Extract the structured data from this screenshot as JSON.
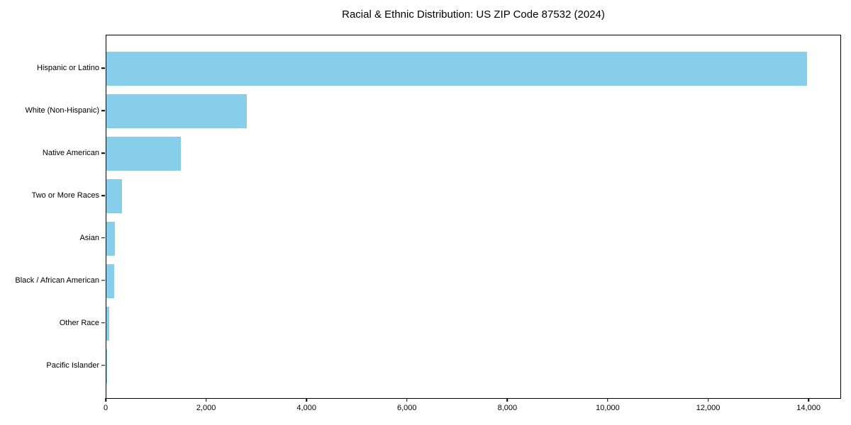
{
  "title": "Racial & Ethnic Distribution: US ZIP Code 87532 (2024)",
  "colors": {
    "bar": "#87CEEB",
    "axis": "#000000",
    "text": "#000000",
    "background": "#ffffff"
  },
  "chart_data": {
    "type": "bar",
    "orientation": "horizontal",
    "title": "Racial & Ethnic Distribution: US ZIP Code 87532 (2024)",
    "categories": [
      "Hispanic or Latino",
      "White (Non-Hispanic)",
      "Native American",
      "Two or More Races",
      "Asian",
      "Black / African American",
      "Other Race",
      "Pacific Islander"
    ],
    "values": [
      13950,
      2800,
      1480,
      310,
      165,
      150,
      60,
      5
    ],
    "xlabel": "",
    "ylabel": "",
    "xlim": [
      0,
      14648
    ],
    "xticks": [
      0,
      2000,
      4000,
      6000,
      8000,
      10000,
      12000,
      14000
    ],
    "xtick_labels": [
      "0",
      "2,000",
      "4,000",
      "6,000",
      "8,000",
      "10,000",
      "12,000",
      "14,000"
    ],
    "grid": false,
    "legend": null,
    "bar_color": "#87CEEB"
  }
}
